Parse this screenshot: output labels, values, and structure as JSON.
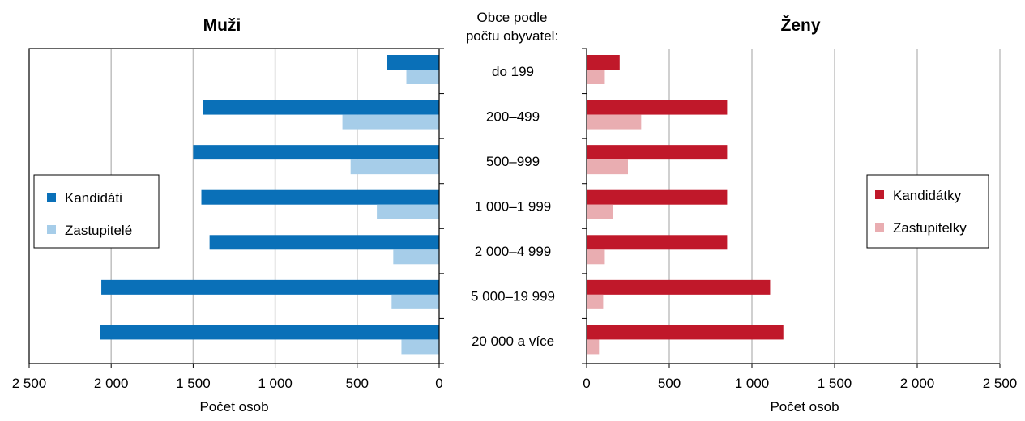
{
  "center_header": {
    "line1": "Obce podle",
    "line2": "počtu obyvatel:"
  },
  "chart_data": [
    {
      "type": "bar",
      "orientation": "horizontal",
      "direction": "reversed",
      "title": "Muži",
      "xlabel": "Počet osob",
      "xlim": [
        0,
        2500
      ],
      "xticks": [
        2500,
        2000,
        1500,
        1000,
        500,
        0
      ],
      "xtick_labels": [
        "2 500",
        "2 000",
        "1 500",
        "1 000",
        "500",
        "0"
      ],
      "grid": "vertical",
      "legend_position": "left",
      "categories": [
        "do 199",
        "200–499",
        "500–999",
        "1 000–1 999",
        "2 000–4 999",
        "5 000–19 999",
        "20 000 a více"
      ],
      "series": [
        {
          "name": "Kandidáti",
          "color": "#0a70b8",
          "values": [
            320,
            1440,
            1500,
            1450,
            1400,
            2060,
            2070
          ]
        },
        {
          "name": "Zastupitelé",
          "color": "#a6cde9",
          "values": [
            200,
            590,
            540,
            380,
            280,
            290,
            230
          ]
        }
      ]
    },
    {
      "type": "bar",
      "orientation": "horizontal",
      "title": "Ženy",
      "xlabel": "Počet osob",
      "xlim": [
        0,
        2500
      ],
      "xticks": [
        0,
        500,
        1000,
        1500,
        2000,
        2500
      ],
      "xtick_labels": [
        "0",
        "500",
        "1 000",
        "1 500",
        "2 000",
        "2 500"
      ],
      "grid": "vertical",
      "legend_position": "right",
      "categories": [
        "do 199",
        "200–499",
        "500–999",
        "1 000–1 999",
        "2 000–4 999",
        "5 000–19 999",
        "20 000 a více"
      ],
      "series": [
        {
          "name": "Kandidátky",
          "color": "#c0182a",
          "values": [
            200,
            850,
            850,
            850,
            850,
            1110,
            1190
          ]
        },
        {
          "name": "Zastupitelky",
          "color": "#e9adb1",
          "values": [
            110,
            330,
            250,
            160,
            110,
            100,
            75
          ]
        }
      ]
    }
  ]
}
